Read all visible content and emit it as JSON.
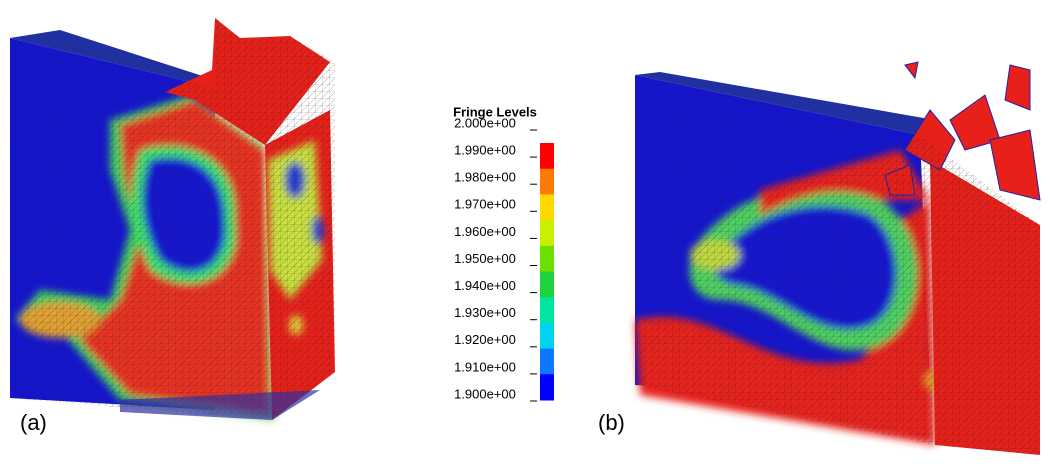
{
  "legend": {
    "title": "Fringe Levels",
    "labels": [
      "2.000e+00",
      "1.990e+00",
      "1.980e+00",
      "1.970e+00",
      "1.960e+00",
      "1.950e+00",
      "1.940e+00",
      "1.930e+00",
      "1.920e+00",
      "1.910e+00",
      "1.900e+00"
    ],
    "colors": [
      "#ff0000",
      "#ff7a00",
      "#ffd800",
      "#c8f000",
      "#6ee000",
      "#1ed23c",
      "#00e6a0",
      "#00d2f0",
      "#0a78ff",
      "#0000ff"
    ]
  },
  "panels": [
    {
      "label": "(a)"
    },
    {
      "label": "(b)"
    }
  ]
}
